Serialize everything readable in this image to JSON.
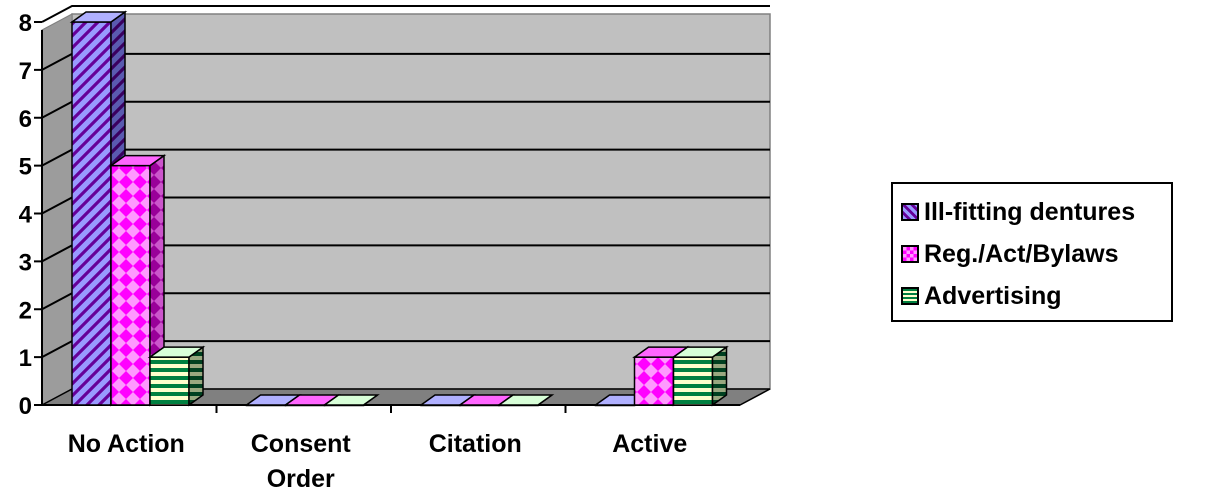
{
  "chart_data": {
    "type": "bar",
    "categories": [
      "No Action",
      "Consent Order",
      "Citation",
      "Active"
    ],
    "category_lines": [
      [
        "No Action"
      ],
      [
        "Consent",
        "Order"
      ],
      [
        "Citation"
      ],
      [
        "Active"
      ]
    ],
    "series": [
      {
        "name": "Ill-fitting dentures",
        "values": [
          8,
          0,
          0,
          0
        ],
        "color": "#9999ff",
        "pattern": "diagonal-stripes"
      },
      {
        "name": "Reg./Act/Bylaws",
        "values": [
          5,
          0,
          0,
          1
        ],
        "color": "#ff00ff",
        "pattern": "diamond-check"
      },
      {
        "name": "Advertising",
        "values": [
          1,
          0,
          0,
          1
        ],
        "color": "#ccffcc",
        "pattern": "horizontal-stripes"
      }
    ],
    "ylim": [
      0,
      8
    ],
    "yticks": [
      "0",
      "1",
      "2",
      "3",
      "4",
      "5",
      "6",
      "7",
      "8"
    ],
    "grid": true,
    "three_d": true,
    "legend_position": "right",
    "plot_background": "#c0c0c0"
  }
}
